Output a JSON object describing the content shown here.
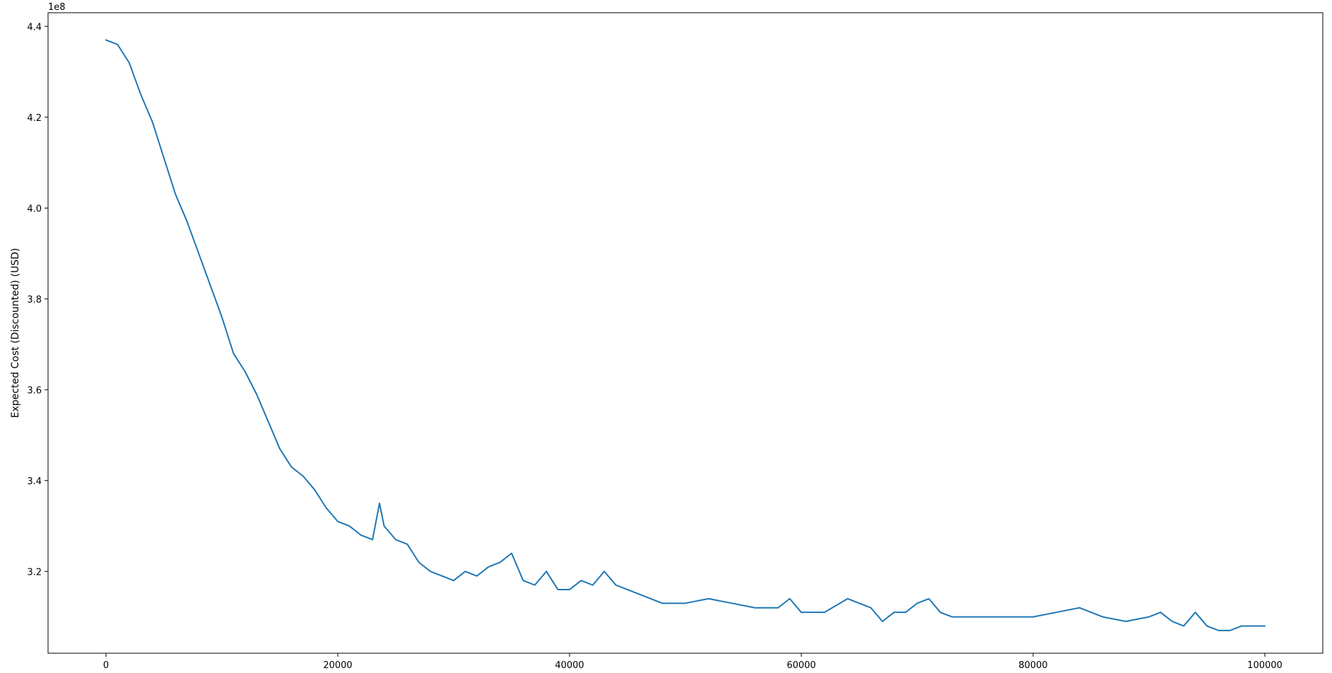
{
  "chart_data": {
    "type": "line",
    "title": "",
    "xlabel": "",
    "ylabel": "Expected Cost (Discounted) (USD)",
    "y_offset_text": "1e8",
    "y_scale_exponent": 8,
    "xlim": [
      -5000,
      105000
    ],
    "ylim": [
      3.02,
      4.43
    ],
    "x_ticks": [
      0,
      20000,
      40000,
      60000,
      80000,
      100000
    ],
    "x_tick_labels": [
      "0",
      "20000",
      "40000",
      "60000",
      "80000",
      "100000"
    ],
    "y_ticks": [
      3.2,
      3.4,
      3.6,
      3.8,
      4.0,
      4.2,
      4.4
    ],
    "y_tick_labels": [
      "3.2",
      "3.4",
      "3.6",
      "3.8",
      "4.0",
      "4.2",
      "4.4"
    ],
    "grid": false,
    "legend": "none",
    "series": [
      {
        "color": "#1f77b4",
        "x": [
          0,
          1000,
          2000,
          3000,
          4000,
          5000,
          6000,
          7000,
          8000,
          9000,
          10000,
          11000,
          12000,
          13000,
          14000,
          15000,
          16000,
          17000,
          18000,
          19000,
          20000,
          21000,
          22000,
          23000,
          23600,
          24000,
          25000,
          26000,
          27000,
          28000,
          29000,
          30000,
          31000,
          32000,
          33000,
          34000,
          35000,
          36000,
          37000,
          38000,
          39000,
          40000,
          41000,
          42000,
          43000,
          44000,
          45000,
          46000,
          48000,
          50000,
          52000,
          54000,
          56000,
          58000,
          59000,
          60000,
          62000,
          64000,
          65000,
          66000,
          67000,
          68000,
          69000,
          70000,
          71000,
          72000,
          73000,
          74000,
          76000,
          78000,
          80000,
          82000,
          84000,
          86000,
          88000,
          90000,
          91000,
          92000,
          93000,
          94000,
          95000,
          96000,
          97000,
          98000,
          99000,
          100000
        ],
        "y": [
          4.37,
          4.36,
          4.32,
          4.25,
          4.19,
          4.11,
          4.03,
          3.97,
          3.9,
          3.83,
          3.76,
          3.68,
          3.64,
          3.59,
          3.53,
          3.47,
          3.43,
          3.41,
          3.38,
          3.34,
          3.31,
          3.3,
          3.28,
          3.27,
          3.35,
          3.3,
          3.27,
          3.26,
          3.22,
          3.2,
          3.19,
          3.18,
          3.2,
          3.19,
          3.21,
          3.22,
          3.24,
          3.18,
          3.17,
          3.2,
          3.16,
          3.16,
          3.18,
          3.17,
          3.2,
          3.17,
          3.16,
          3.15,
          3.13,
          3.13,
          3.14,
          3.13,
          3.12,
          3.12,
          3.14,
          3.11,
          3.11,
          3.14,
          3.13,
          3.12,
          3.09,
          3.11,
          3.11,
          3.13,
          3.14,
          3.11,
          3.1,
          3.1,
          3.1,
          3.1,
          3.1,
          3.11,
          3.12,
          3.1,
          3.09,
          3.1,
          3.11,
          3.09,
          3.08,
          3.11,
          3.08,
          3.07,
          3.07,
          3.08,
          3.08,
          3.08
        ]
      }
    ]
  }
}
